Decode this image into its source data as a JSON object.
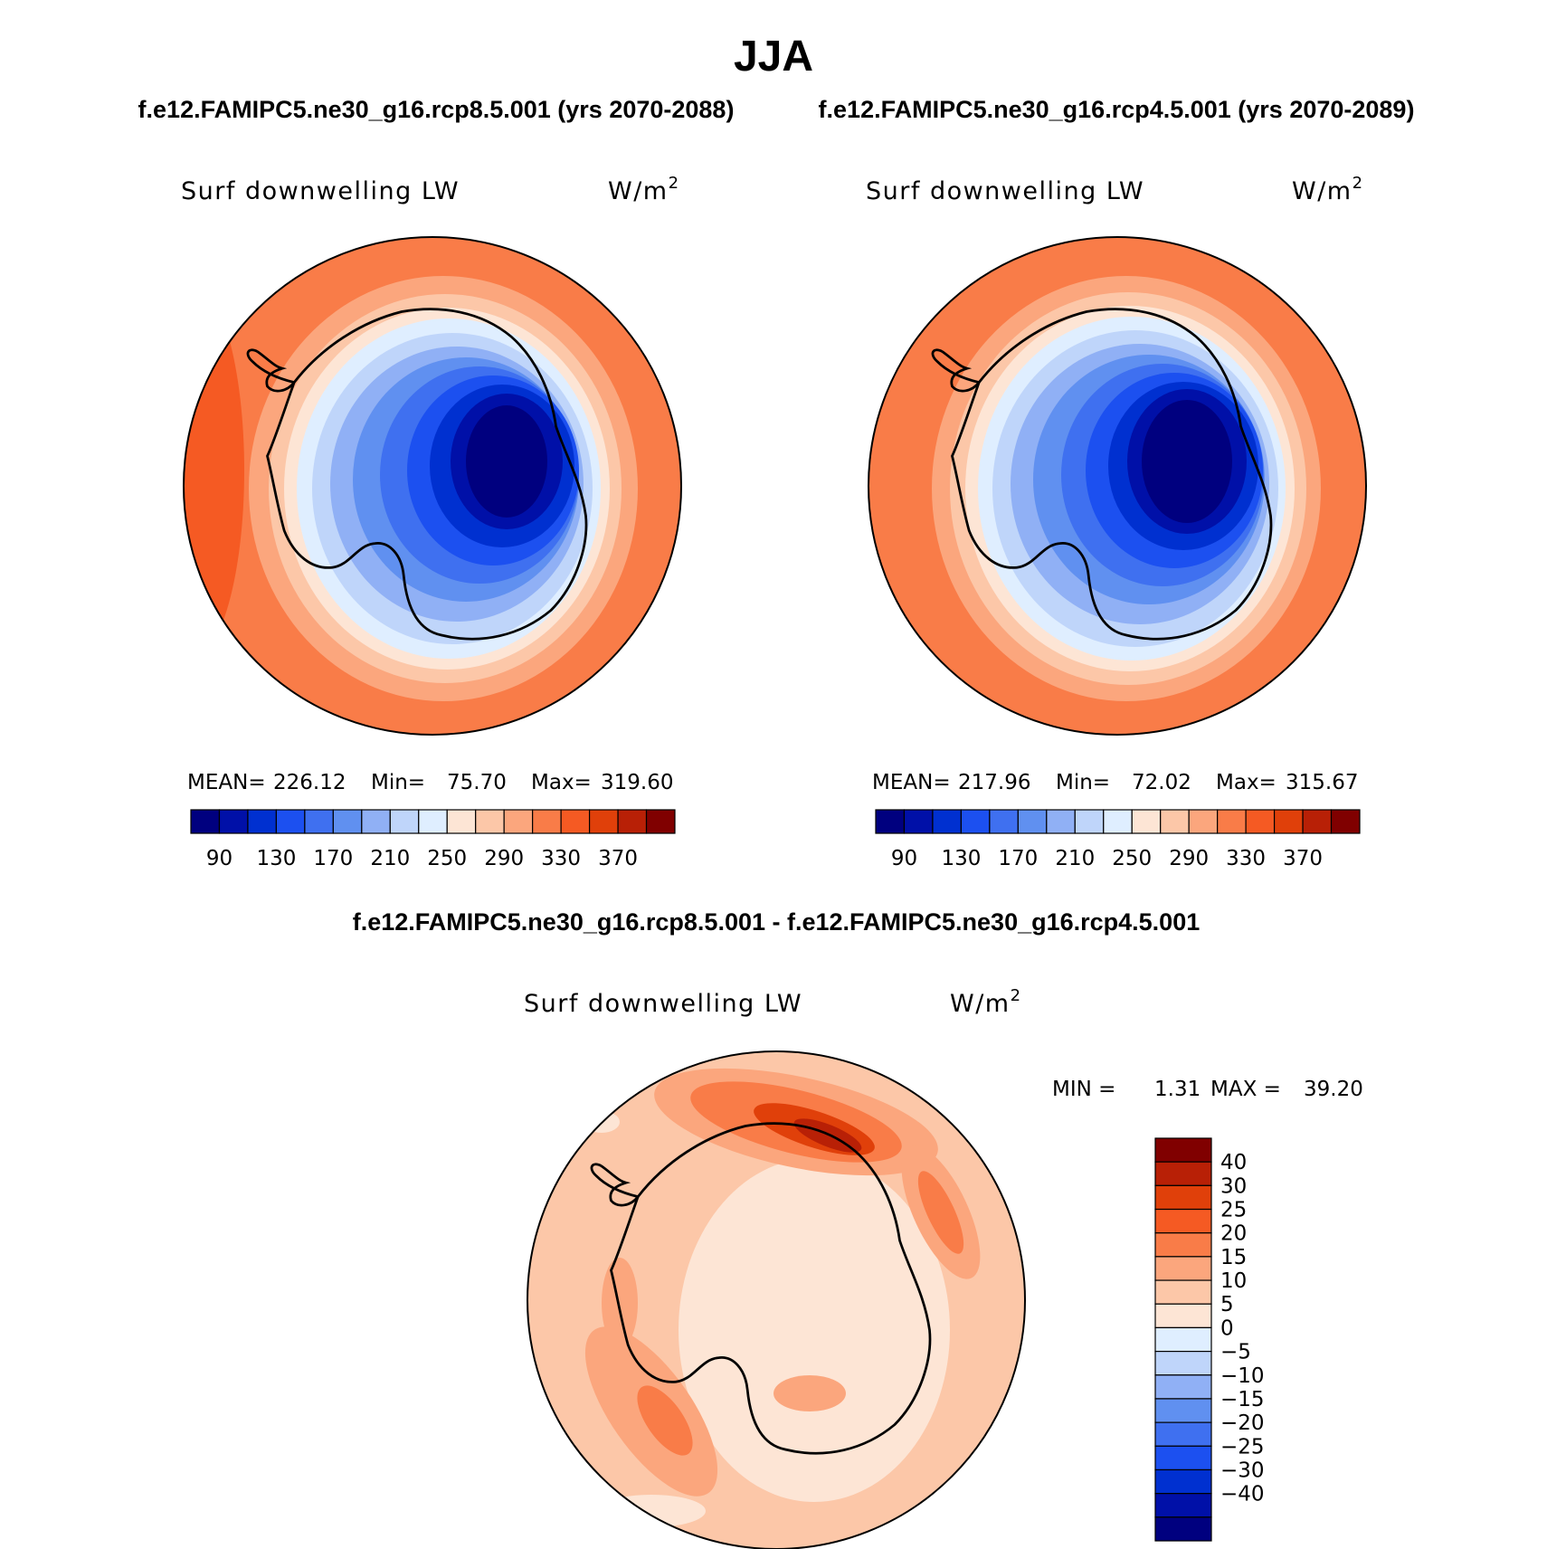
{
  "title": "JJA",
  "panels": [
    {
      "case_title": "f.e12.FAMIPC5.ne30_g16.rcp8.5.001 (yrs 2070-2088)",
      "var_label": "Surf downwelling LW",
      "units_base": "W/m",
      "units_sup": "2",
      "stats": {
        "mean_label": "MEAN=",
        "mean": "226.12",
        "min_label": "Min=",
        "min": "75.70",
        "max_label": "Max=",
        "max": "319.60"
      },
      "colorbar": {
        "colors": [
          "#00007f",
          "#0010a8",
          "#0030d0",
          "#1c50f0",
          "#3f70f0",
          "#6090f0",
          "#90b0f5",
          "#bfd5fa",
          "#dfeeff",
          "#fde5d5",
          "#fcc7a8",
          "#fba67d",
          "#f97c48",
          "#f55a23",
          "#e0400a",
          "#b82006",
          "#800000"
        ],
        "tick_labels": [
          "90",
          "130",
          "170",
          "210",
          "250",
          "290",
          "330",
          "370"
        ],
        "tick_values": [
          90,
          130,
          170,
          210,
          250,
          290,
          330,
          370
        ]
      }
    },
    {
      "case_title": "f.e12.FAMIPC5.ne30_g16.rcp4.5.001 (yrs 2070-2089)",
      "var_label": "Surf downwelling LW",
      "units_base": "W/m",
      "units_sup": "2",
      "stats": {
        "mean_label": "MEAN=",
        "mean": "217.96",
        "min_label": "Min=",
        "min": "72.02",
        "max_label": "Max=",
        "max": "315.67"
      },
      "colorbar": {
        "colors": [
          "#00007f",
          "#0010a8",
          "#0030d0",
          "#1c50f0",
          "#3f70f0",
          "#6090f0",
          "#90b0f5",
          "#bfd5fa",
          "#dfeeff",
          "#fde5d5",
          "#fcc7a8",
          "#fba67d",
          "#f97c48",
          "#f55a23",
          "#e0400a",
          "#b82006",
          "#800000"
        ],
        "tick_labels": [
          "90",
          "130",
          "170",
          "210",
          "250",
          "290",
          "330",
          "370"
        ],
        "tick_values": [
          90,
          130,
          170,
          210,
          250,
          290,
          330,
          370
        ]
      }
    }
  ],
  "diff_panel": {
    "case_title": "f.e12.FAMIPC5.ne30_g16.rcp8.5.001 - f.e12.FAMIPC5.ne30_g16.rcp4.5.001",
    "var_label": "Surf downwelling LW",
    "units_base": "W/m",
    "units_sup": "2",
    "min_label": "MIN =",
    "min": "1.31",
    "max_label": "MAX =",
    "max": "39.20",
    "colorbar": {
      "colors": [
        "#800000",
        "#b82006",
        "#e0400a",
        "#f55a23",
        "#f97c48",
        "#fba67d",
        "#fcc7a8",
        "#fde5d5",
        "#dfeeff",
        "#bfd5fa",
        "#90b0f5",
        "#6090f0",
        "#3f70f0",
        "#1c50f0",
        "#0030d0",
        "#0010a8",
        "#00007f"
      ],
      "tick_labels": [
        "40",
        "30",
        "25",
        "20",
        "15",
        "10",
        "5",
        "0",
        "−5",
        "−10",
        "−15",
        "−20",
        "−25",
        "−30",
        "−40"
      ]
    }
  }
}
